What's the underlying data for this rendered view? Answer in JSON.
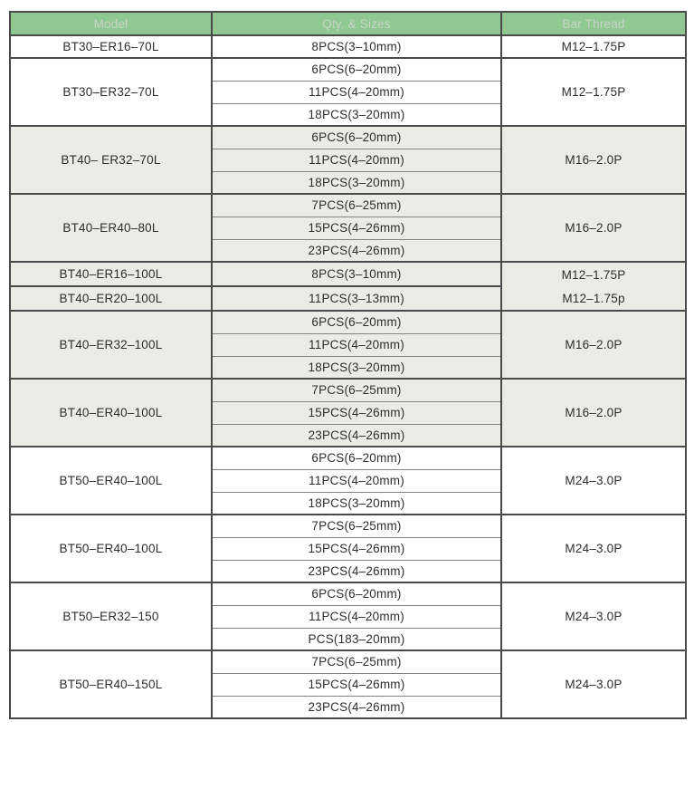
{
  "table": {
    "columns": [
      "Model",
      "Qty. & Sizes",
      "Bar Thread"
    ],
    "colors": {
      "page_bg": "#ffffff",
      "header_bg": "#8fc891",
      "header_text": "#c8d4c8",
      "shaded_row_bg": "#eaece5",
      "grid_line": "#4a4a4a",
      "inner_line": "#828282",
      "body_text": "#2e2e2e"
    },
    "groups": [
      {
        "model": "BT30–ER16–70L",
        "qty": [
          "8PCS(3–10mm)"
        ],
        "bar": [
          "M12–1.75P"
        ],
        "shaded": false
      },
      {
        "model": "BT30–ER32–70L",
        "qty": [
          "6PCS(6–20mm)",
          "11PCS(4–20mm)",
          "18PCS(3–20mm)"
        ],
        "bar": [
          "M12–1.75P"
        ],
        "shaded": false
      },
      {
        "model": "BT40– ER32–70L",
        "qty": [
          "6PCS(6–20mm)",
          "11PCS(4–20mm)",
          "18PCS(3–20mm)"
        ],
        "bar": [
          "M16–2.0P"
        ],
        "shaded": true
      },
      {
        "model": "BT40–ER40–80L",
        "qty": [
          "7PCS(6–25mm)",
          "15PCS(4–26mm)",
          "23PCS(4–26mm)"
        ],
        "bar": [
          "M16–2.0P"
        ],
        "shaded": true
      },
      {
        "model": "BT40–ER16–100L",
        "qty": [
          "8PCS(3–10mm)"
        ],
        "bar": [
          "M12–1.75P",
          "M12–1.75p"
        ],
        "bar_rowspan": 2,
        "shaded": true
      },
      {
        "model": "BT40–ER20–100L",
        "qty": [
          "11PCS(3–13mm)"
        ],
        "bar": null,
        "shaded": true
      },
      {
        "model": "BT40–ER32–100L",
        "qty": [
          "6PCS(6–20mm)",
          "11PCS(4–20mm)",
          "18PCS(3–20mm)"
        ],
        "bar": [
          "M16–2.0P"
        ],
        "shaded": true
      },
      {
        "model": "BT40–ER40–100L",
        "qty": [
          "7PCS(6–25mm)",
          "15PCS(4–26mm)",
          "23PCS(4–26mm)"
        ],
        "bar": [
          "M16–2.0P"
        ],
        "shaded": true
      },
      {
        "model": "BT50–ER40–100L",
        "qty": [
          "6PCS(6–20mm)",
          "11PCS(4–20mm)",
          "18PCS(3–20mm)"
        ],
        "bar": [
          "M24–3.0P"
        ],
        "shaded": false
      },
      {
        "model": "BT50–ER40–100L",
        "qty": [
          "7PCS(6–25mm)",
          "15PCS(4–26mm)",
          "23PCS(4–26mm)"
        ],
        "bar": [
          "M24–3.0P"
        ],
        "shaded": false
      },
      {
        "model": "BT50–ER32–150",
        "qty": [
          "6PCS(6–20mm)",
          "11PCS(4–20mm)",
          "PCS(183–20mm)"
        ],
        "bar": [
          "M24–3.0P"
        ],
        "shaded": false
      },
      {
        "model": "BT50–ER40–150L",
        "qty": [
          "7PCS(6–25mm)",
          "15PCS(4–26mm)",
          "23PCS(4–26mm)"
        ],
        "bar": [
          "M24–3.0P"
        ],
        "shaded": false
      }
    ]
  }
}
